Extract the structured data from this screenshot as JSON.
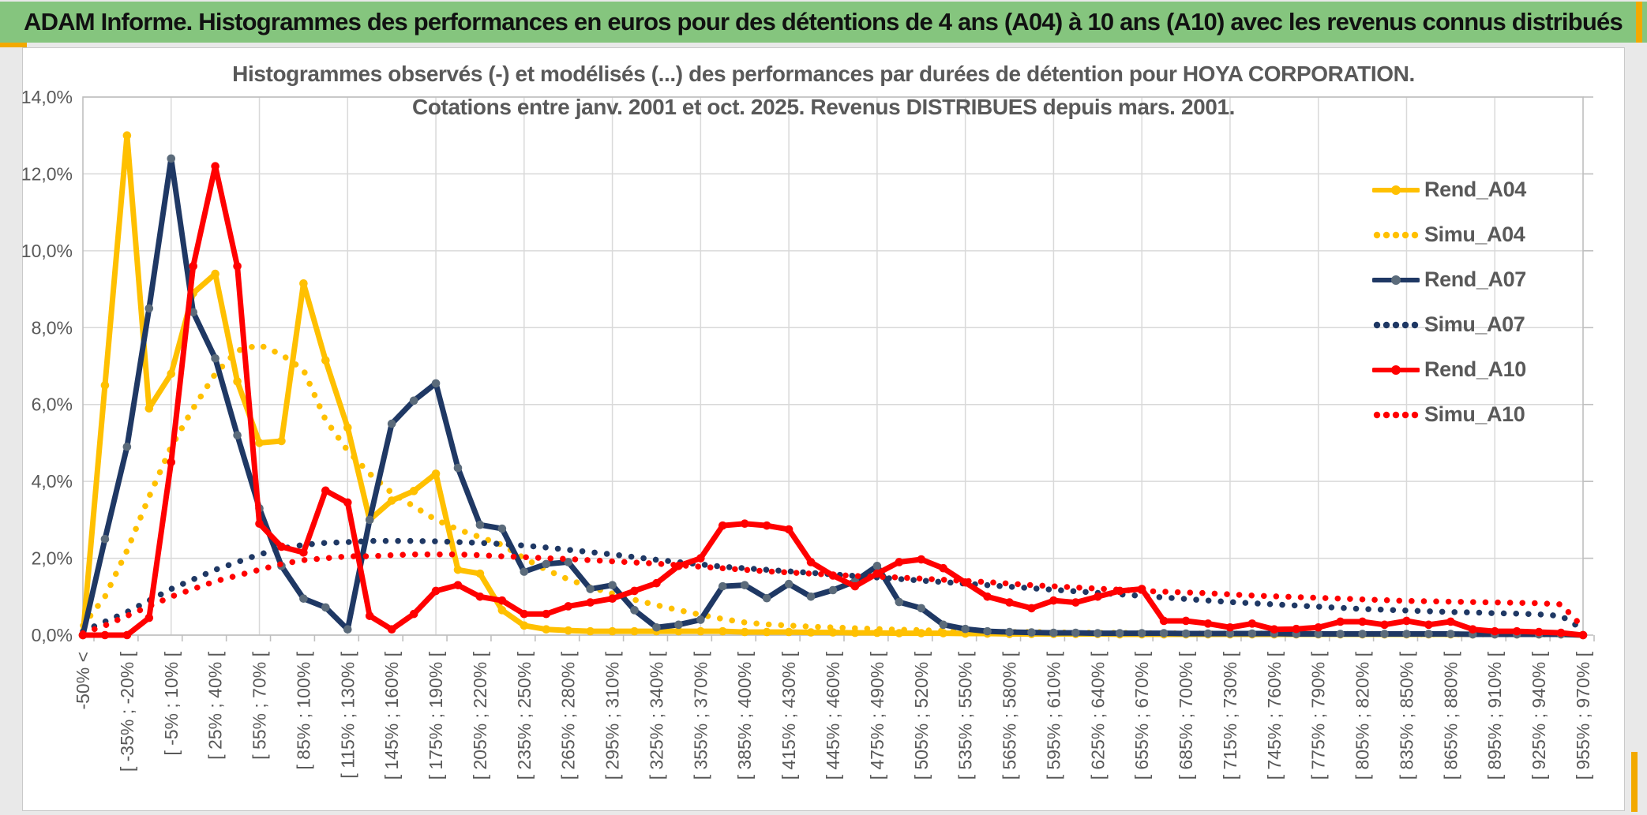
{
  "window": {
    "header_title": "ADAM Informe. Histogrammes des performances en euros pour des détentions de 4 ans (A04) à 10 ans (A10) avec les revenus connus distribués",
    "header_bg": "#85C57E",
    "accent_gold": "#F2A900"
  },
  "chart_data": {
    "type": "line",
    "title_line1": "Histogrammes observés (-) et modélisés (...) des performances par durées de détention pour HOYA CORPORATION.",
    "title_line2": "Cotations entre janv. 2001 et oct. 2025. Revenus DISTRIBUES depuis mars. 2001.",
    "axis": {
      "y_min": 0,
      "y_max": 14,
      "y_step": 2,
      "y_tick_labels": [
        "0,0%",
        "2,0%",
        "4,0%",
        "6,0%",
        "8,0%",
        "10,0%",
        "12,0%",
        "14,0%"
      ],
      "grid": true,
      "text_color": "#595959",
      "grid_color": "#D9D9D9",
      "frame_color": "#BFBFBF"
    },
    "bin_labels": [
      "-50% <",
      "[ -35% ; -20% [",
      "[ -5% ; 10% [",
      "[ 25% ; 40% [",
      "[ 55% ; 70% [",
      "[ 85% ; 100% [",
      "[ 115% ; 130% [",
      "[ 145% ; 160% [",
      "[ 175% ; 190% [",
      "[ 205% ; 220% [",
      "[ 235% ; 250% [",
      "[ 265% ; 280% [",
      "[ 295% ; 310% [",
      "[ 325% ; 340% [",
      "[ 355% ; 370% [",
      "[ 385% ; 400% [",
      "[ 415% ; 430% [",
      "[ 445% ; 460% [",
      "[ 475% ; 490% [",
      "[ 505% ; 520% [",
      "[ 535% ; 550% [",
      "[ 565% ; 580% [",
      "[ 595% ; 610% [",
      "[ 625% ; 640% [",
      "[ 655% ; 670% [",
      "[ 685% ; 700% [",
      "[ 715% ; 730% [",
      "[ 745% ; 760% [",
      "[ 775% ; 790% [",
      "[ 805% ; 820% [",
      "[ 835% ; 850% [",
      "[ 865% ; 880% [",
      "[ 895% ; 910% [",
      "[ 925% ; 940% [",
      "[ 955% ; 970% ["
    ],
    "labels_every_other_point": true,
    "legend_position": "right-inside",
    "series": [
      {
        "name": "Rend_A04",
        "style": "solid",
        "color": "#FFC000",
        "marker_color": "#FFC000",
        "values": [
          0,
          6.5,
          13.0,
          5.9,
          6.8,
          8.9,
          9.4,
          6.6,
          5.0,
          5.05,
          9.15,
          7.15,
          5.4,
          3.0,
          3.5,
          3.75,
          4.2,
          1.7,
          1.6,
          0.65,
          0.25,
          0.15,
          0.12,
          0.1,
          0.1,
          0.1,
          0.1,
          0.1,
          0.1,
          0.1,
          0.08,
          0.08,
          0.08,
          0.07,
          0.07,
          0.06,
          0.06,
          0.05,
          0.05,
          0.05,
          0.04,
          0.04,
          0.03,
          0.03,
          0.03,
          0.03,
          0.03,
          0.02,
          0.02,
          0.02,
          0.02,
          0.02,
          0.02,
          0.02,
          0.02,
          0.02,
          0.02,
          0.02,
          0.02,
          0.02,
          0.02,
          0.02,
          0.02,
          0.02,
          0.02,
          0.02,
          0.02,
          0.02,
          0
        ]
      },
      {
        "name": "Simu_A04",
        "style": "dotted",
        "color": "#FFC000",
        "values": [
          0.25,
          1.0,
          2.2,
          3.6,
          4.9,
          5.9,
          6.8,
          7.4,
          7.55,
          7.3,
          6.9,
          5.6,
          4.8,
          4.2,
          3.7,
          3.35,
          3.0,
          2.75,
          2.55,
          2.35,
          2.0,
          1.7,
          1.45,
          1.25,
          1.08,
          0.92,
          0.78,
          0.65,
          0.53,
          0.42,
          0.33,
          0.28,
          0.25,
          0.22,
          0.2,
          0.18,
          0.16,
          0.14,
          0.13,
          0.11,
          0.1,
          0.09,
          0.08,
          0.08,
          0.07,
          0.07,
          0.06,
          0.06,
          0.05,
          0.05,
          0.04,
          0.04,
          0.04,
          0.04,
          0.04,
          0.03,
          0.03,
          0.03,
          0.03,
          0.03,
          0.02,
          0.02,
          0.02,
          0.02,
          0.02,
          0.02,
          0.02,
          0.02,
          0.02
        ]
      },
      {
        "name": "Rend_A07",
        "style": "solid",
        "color": "#1F3864",
        "marker_color": "#5B6B7B",
        "values": [
          0,
          2.5,
          4.9,
          8.5,
          12.4,
          8.4,
          7.2,
          5.2,
          3.3,
          1.8,
          0.95,
          0.72,
          0.15,
          3.0,
          5.5,
          6.1,
          6.55,
          4.35,
          2.87,
          2.77,
          1.65,
          1.85,
          1.9,
          1.2,
          1.3,
          0.65,
          0.2,
          0.27,
          0.4,
          1.27,
          1.3,
          0.96,
          1.33,
          1.0,
          1.17,
          1.4,
          1.8,
          0.86,
          0.7,
          0.27,
          0.16,
          0.1,
          0.08,
          0.07,
          0.06,
          0.06,
          0.05,
          0.05,
          0.05,
          0.05,
          0.04,
          0.04,
          0.04,
          0.04,
          0.04,
          0.03,
          0.03,
          0.03,
          0.03,
          0.03,
          0.03,
          0.03,
          0.03,
          0.02,
          0.02,
          0.02,
          0.02,
          0.02,
          0
        ]
      },
      {
        "name": "Simu_A07",
        "style": "dotted",
        "color": "#1F3864",
        "values": [
          0.1,
          0.35,
          0.6,
          0.9,
          1.2,
          1.45,
          1.7,
          1.9,
          2.1,
          2.25,
          2.35,
          2.4,
          2.42,
          2.45,
          2.45,
          2.45,
          2.44,
          2.42,
          2.4,
          2.37,
          2.33,
          2.28,
          2.22,
          2.16,
          2.1,
          2.03,
          1.96,
          1.9,
          1.84,
          1.78,
          1.74,
          1.7,
          1.66,
          1.62,
          1.58,
          1.54,
          1.5,
          1.46,
          1.42,
          1.38,
          1.34,
          1.3,
          1.26,
          1.22,
          1.18,
          1.14,
          1.1,
          1.06,
          1.02,
          0.98,
          0.94,
          0.9,
          0.86,
          0.83,
          0.8,
          0.77,
          0.74,
          0.71,
          0.68,
          0.66,
          0.64,
          0.62,
          0.6,
          0.59,
          0.57,
          0.56,
          0.54,
          0.5,
          0.15
        ]
      },
      {
        "name": "Rend_A10",
        "style": "solid",
        "color": "#FF0000",
        "marker_color": "#FF0000",
        "values": [
          0,
          0,
          0,
          0.45,
          4.5,
          9.6,
          12.2,
          9.6,
          2.9,
          2.3,
          2.15,
          3.76,
          3.45,
          0.5,
          0.15,
          0.55,
          1.15,
          1.3,
          1.0,
          0.9,
          0.55,
          0.55,
          0.75,
          0.85,
          0.95,
          1.15,
          1.35,
          1.8,
          2.0,
          2.85,
          2.9,
          2.85,
          2.75,
          1.9,
          1.55,
          1.27,
          1.6,
          1.9,
          1.97,
          1.74,
          1.37,
          1.0,
          0.85,
          0.7,
          0.9,
          0.85,
          1.0,
          1.15,
          1.2,
          0.37,
          0.37,
          0.3,
          0.2,
          0.3,
          0.15,
          0.16,
          0.2,
          0.35,
          0.35,
          0.27,
          0.37,
          0.27,
          0.35,
          0.15,
          0.1,
          0.1,
          0.08,
          0.06,
          0
        ]
      },
      {
        "name": "Simu_A10",
        "style": "dotted",
        "color": "#FF0000",
        "values": [
          0.05,
          0.25,
          0.5,
          0.75,
          1.0,
          1.2,
          1.4,
          1.55,
          1.7,
          1.85,
          1.95,
          2.0,
          2.05,
          2.05,
          2.08,
          2.1,
          2.1,
          2.1,
          2.08,
          2.05,
          2.03,
          2.0,
          1.98,
          1.95,
          1.92,
          1.89,
          1.86,
          1.82,
          1.78,
          1.74,
          1.7,
          1.66,
          1.63,
          1.6,
          1.57,
          1.54,
          1.52,
          1.5,
          1.47,
          1.44,
          1.41,
          1.38,
          1.34,
          1.3,
          1.27,
          1.24,
          1.21,
          1.18,
          1.15,
          1.13,
          1.11,
          1.09,
          1.06,
          1.03,
          1.01,
          0.99,
          0.97,
          0.95,
          0.93,
          0.91,
          0.89,
          0.88,
          0.87,
          0.86,
          0.85,
          0.84,
          0.83,
          0.8,
          0.2
        ]
      }
    ],
    "legend": [
      {
        "name": "Rend_A04",
        "style": "solid",
        "color": "#FFC000"
      },
      {
        "name": "Simu_A04",
        "style": "dotted",
        "color": "#FFC000"
      },
      {
        "name": "Rend_A07",
        "style": "solid",
        "color": "#1F3864",
        "marker_color": "#5B6B7B"
      },
      {
        "name": "Simu_A07",
        "style": "dotted",
        "color": "#1F3864"
      },
      {
        "name": "Rend_A10",
        "style": "solid",
        "color": "#FF0000"
      },
      {
        "name": "Simu_A10",
        "style": "dotted",
        "color": "#FF0000"
      }
    ]
  }
}
